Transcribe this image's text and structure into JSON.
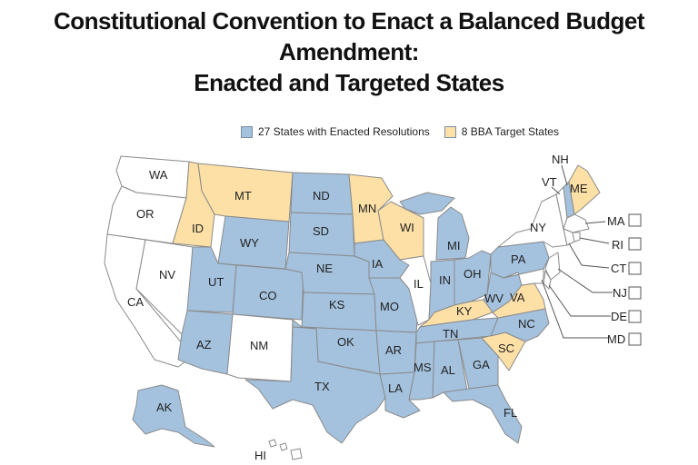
{
  "title": {
    "line1": "Constitutional Convention to Enact a Balanced Budget Amendment:",
    "line2": "Enacted and Targeted States"
  },
  "legend": {
    "enacted_label": "27 States with Enacted Resolutions",
    "target_label": "8 BBA Target States"
  },
  "colors": {
    "enacted": "#a4c2de",
    "target": "#fde0a6",
    "none": "#ffffff",
    "border": "#8a8a8a"
  },
  "states": {
    "WA": "none",
    "OR": "none",
    "CA": "none",
    "NV": "none",
    "ID": "target",
    "MT": "target",
    "WY": "enacted",
    "UT": "enacted",
    "CO": "enacted",
    "AZ": "enacted",
    "NM": "none",
    "ND": "enacted",
    "SD": "enacted",
    "NE": "enacted",
    "KS": "enacted",
    "OK": "enacted",
    "TX": "enacted",
    "MN": "target",
    "IA": "enacted",
    "MO": "enacted",
    "AR": "enacted",
    "LA": "enacted",
    "WI": "target",
    "IL": "none",
    "MI": "enacted",
    "IN": "enacted",
    "OH": "enacted",
    "KY": "target",
    "TN": "enacted",
    "MS": "enacted",
    "AL": "enacted",
    "GA": "enacted",
    "FL": "enacted",
    "SC": "target",
    "NC": "enacted",
    "VA": "target",
    "WV": "enacted",
    "PA": "enacted",
    "NY": "none",
    "VT": "none",
    "NH": "enacted",
    "ME": "target",
    "MA": "none",
    "RI": "none",
    "CT": "none",
    "NJ": "none",
    "DE": "none",
    "MD": "none",
    "AK": "enacted",
    "HI": "none"
  },
  "labels": {
    "WA": "WA",
    "OR": "OR",
    "CA": "CA",
    "NV": "NV",
    "ID": "ID",
    "MT": "MT",
    "WY": "WY",
    "UT": "UT",
    "CO": "CO",
    "AZ": "AZ",
    "NM": "NM",
    "ND": "ND",
    "SD": "SD",
    "NE": "NE",
    "KS": "KS",
    "OK": "OK",
    "TX": "TX",
    "MN": "MN",
    "IA": "IA",
    "MO": "MO",
    "AR": "AR",
    "LA": "LA",
    "WI": "WI",
    "IL": "IL",
    "MI": "MI",
    "IN": "IN",
    "OH": "OH",
    "KY": "KY",
    "TN": "TN",
    "MS": "MS",
    "AL": "AL",
    "GA": "GA",
    "FL": "FL",
    "SC": "SC",
    "NC": "NC",
    "VA": "VA",
    "WV": "WV",
    "PA": "PA",
    "NY": "NY",
    "VT": "VT",
    "NH": "NH",
    "ME": "ME",
    "MA": "MA",
    "RI": "RI",
    "CT": "CT",
    "NJ": "NJ",
    "DE": "DE",
    "MD": "MD",
    "AK": "AK",
    "HI": "HI"
  }
}
